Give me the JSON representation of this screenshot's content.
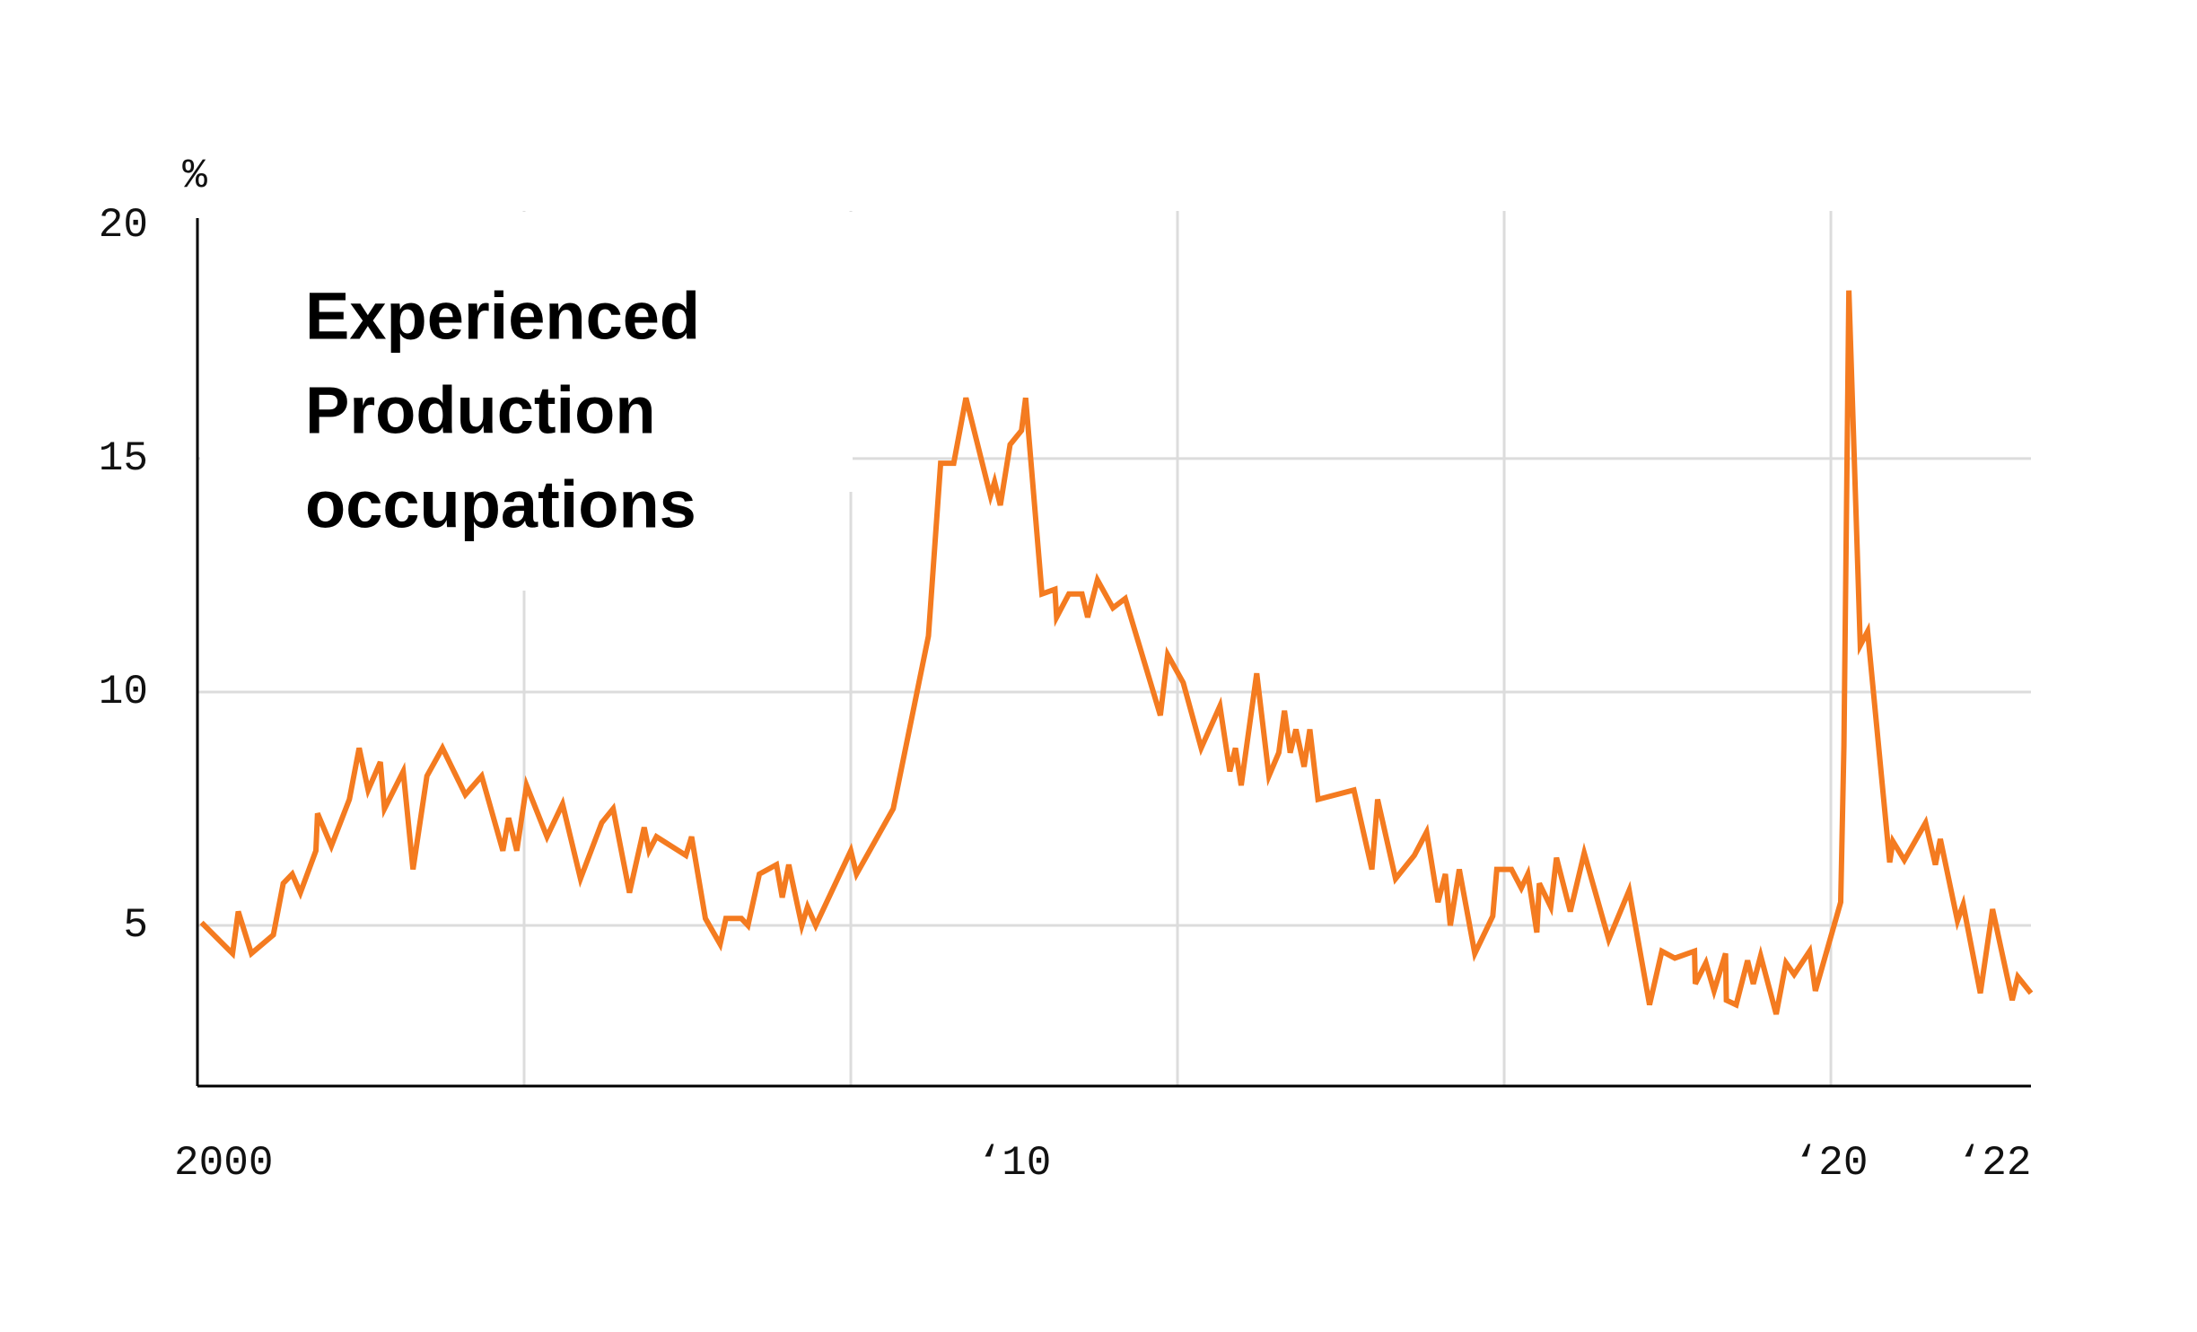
{
  "chart_data": {
    "type": "line",
    "title": [
      "Experienced",
      "Production",
      "occupations"
    ],
    "y_label": "%",
    "xlim": [
      2000,
      2022.45
    ],
    "xticks": [
      {
        "value": 2000,
        "label": "2000"
      },
      {
        "value": 2010,
        "label": "‘10"
      },
      {
        "value": 2020,
        "label": "‘20"
      },
      {
        "value": 2022,
        "label": "‘22"
      }
    ],
    "xgrid": [
      2004,
      2008,
      2012,
      2016,
      2020
    ],
    "ylim": [
      1.56,
      20.15
    ],
    "yticks": [
      5,
      10,
      15,
      20
    ],
    "ygrid": [
      5,
      10,
      15
    ],
    "grid": true,
    "x": [
      2000.05,
      2000.43,
      2000.5,
      2000.66,
      2000.93,
      2001.05,
      2001.16,
      2001.26,
      2001.45,
      2001.47,
      2001.64,
      2001.86,
      2001.98,
      2002.09,
      2002.24,
      2002.29,
      2002.52,
      2002.64,
      2002.81,
      2003.0,
      2003.28,
      2003.48,
      2003.74,
      2003.81,
      2003.91,
      2004.03,
      2004.28,
      2004.47,
      2004.69,
      2004.95,
      2005.09,
      2005.29,
      2005.47,
      2005.53,
      2005.62,
      2005.98,
      2006.05,
      2006.22,
      2006.4,
      2006.47,
      2006.66,
      2006.74,
      2006.88,
      2007.09,
      2007.16,
      2007.24,
      2007.4,
      2007.47,
      2007.57,
      2008.0,
      2008.07,
      2008.52,
      2008.95,
      2009.1,
      2009.26,
      2009.41,
      2009.71,
      2009.76,
      2009.83,
      2009.95,
      2010.09,
      2010.14,
      2010.34,
      2010.5,
      2010.52,
      2010.67,
      2010.83,
      2010.9,
      2011.02,
      2011.21,
      2011.36,
      2011.79,
      2011.88,
      2012.07,
      2012.29,
      2012.52,
      2012.64,
      2012.71,
      2012.78,
      2012.97,
      2013.12,
      2013.24,
      2013.31,
      2013.38,
      2013.45,
      2013.55,
      2013.62,
      2013.72,
      2014.16,
      2014.38,
      2014.45,
      2014.67,
      2014.9,
      2015.05,
      2015.19,
      2015.28,
      2015.34,
      2015.45,
      2015.64,
      2015.86,
      2015.91,
      2016.09,
      2016.21,
      2016.29,
      2016.4,
      2016.43,
      2016.57,
      2016.64,
      2016.81,
      2016.98,
      2017.28,
      2017.53,
      2017.78,
      2017.93,
      2018.09,
      2018.33,
      2018.34,
      2018.47,
      2018.57,
      2018.71,
      2018.72,
      2018.84,
      2018.98,
      2019.05,
      2019.14,
      2019.33,
      2019.45,
      2019.55,
      2019.74,
      2019.81,
      2020.12,
      2020.16,
      2020.22,
      2020.36,
      2020.45,
      2020.72,
      2020.76,
      2020.9,
      2021.16,
      2021.28,
      2021.34,
      2021.55,
      2021.62,
      2021.83,
      2021.98,
      2022.22,
      2022.29,
      2022.45
    ],
    "series": [
      {
        "name": "Experienced Production occupations",
        "color": "#f47b20",
        "values": [
          5.06,
          4.4,
          5.3,
          4.4,
          4.8,
          5.9,
          6.1,
          5.7,
          6.6,
          7.4,
          6.7,
          7.7,
          8.8,
          7.9,
          8.5,
          7.5,
          8.3,
          6.2,
          8.2,
          8.8,
          7.8,
          8.2,
          6.6,
          7.3,
          6.6,
          8.0,
          6.9,
          7.6,
          6.0,
          7.2,
          7.5,
          5.7,
          7.1,
          6.6,
          6.9,
          6.5,
          6.9,
          5.15,
          4.6,
          5.15,
          5.15,
          5.0,
          6.1,
          6.3,
          5.6,
          6.3,
          5.0,
          5.4,
          5.0,
          6.6,
          6.1,
          7.5,
          11.2,
          14.9,
          14.9,
          16.3,
          14.2,
          14.5,
          14.0,
          15.3,
          15.6,
          16.3,
          12.1,
          12.2,
          11.6,
          12.1,
          12.1,
          11.6,
          12.4,
          11.8,
          12.0,
          9.5,
          10.8,
          10.2,
          8.8,
          9.7,
          8.3,
          8.8,
          8.0,
          10.4,
          8.2,
          8.7,
          9.6,
          8.7,
          9.2,
          8.4,
          9.2,
          7.7,
          7.9,
          6.2,
          7.7,
          6.0,
          6.5,
          7.0,
          5.5,
          6.1,
          5.0,
          6.2,
          4.4,
          5.2,
          6.2,
          6.2,
          5.8,
          6.1,
          4.85,
          5.9,
          5.4,
          6.45,
          5.3,
          6.55,
          4.7,
          5.75,
          3.3,
          4.45,
          4.3,
          4.45,
          3.75,
          4.2,
          3.6,
          4.4,
          3.4,
          3.3,
          4.25,
          3.75,
          4.35,
          3.1,
          4.2,
          3.95,
          4.45,
          3.6,
          5.5,
          8.85,
          18.6,
          11.0,
          11.3,
          6.35,
          6.8,
          6.4,
          7.2,
          6.3,
          6.85,
          5.1,
          5.45,
          3.55,
          5.35,
          3.4,
          3.9,
          3.55
        ]
      }
    ]
  }
}
